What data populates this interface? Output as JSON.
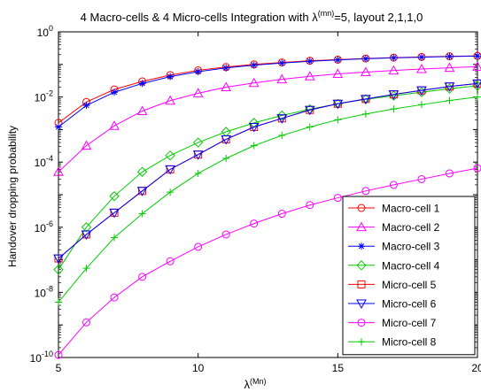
{
  "chart_data": {
    "type": "line",
    "title_prefix": "4 Macro-cells & 4 Micro-cells Integration with λ",
    "title_sup": "(mn)",
    "title_suffix": "=5, layout 2,1,1,0",
    "xlabel_base": "λ",
    "xlabel_sup": "(Mn)",
    "ylabel": "Handover dropping probability",
    "xlim": [
      5,
      20
    ],
    "ylim_exp": [
      -10,
      0
    ],
    "y_scale": "log",
    "x_ticks": [
      "5",
      "10",
      "15",
      "20"
    ],
    "y_tick_base": "10",
    "y_tick_exponents": [
      "-10",
      "-8",
      "-6",
      "-4",
      "-2",
      "0"
    ],
    "legend_position": "bottom-right",
    "x": [
      5,
      6,
      7,
      8,
      9,
      10,
      11,
      12,
      13,
      14,
      15,
      16,
      17,
      18,
      19,
      20
    ],
    "series": [
      {
        "name": "Macro-cell 1",
        "color": "#ff0000",
        "marker": "circle",
        "values": [
          0.0016,
          0.007,
          0.017,
          0.03,
          0.047,
          0.066,
          0.083,
          0.1,
          0.115,
          0.13,
          0.14,
          0.152,
          0.162,
          0.17,
          0.177,
          0.183
        ]
      },
      {
        "name": "Macro-cell 2",
        "color": "#ff00ff",
        "marker": "triangle-up",
        "values": [
          5e-05,
          0.00032,
          0.0013,
          0.0037,
          0.0077,
          0.013,
          0.02,
          0.027,
          0.035,
          0.043,
          0.051,
          0.058,
          0.065,
          0.072,
          0.079,
          0.085
        ]
      },
      {
        "name": "Macro-cell 3",
        "color": "#0000ff",
        "marker": "star",
        "values": [
          0.0012,
          0.0055,
          0.014,
          0.026,
          0.042,
          0.06,
          0.078,
          0.095,
          0.11,
          0.125,
          0.137,
          0.149,
          0.159,
          0.167,
          0.175,
          0.181
        ]
      },
      {
        "name": "Macro-cell 4",
        "color": "#00cc00",
        "marker": "diamond",
        "values": [
          5e-08,
          1e-06,
          9e-06,
          5e-05,
          0.00016,
          0.0004,
          0.00085,
          0.0016,
          0.0027,
          0.0042,
          0.0062,
          0.0085,
          0.011,
          0.014,
          0.018,
          0.022
        ]
      },
      {
        "name": "Micro-cell 5",
        "color": "#ff0000",
        "marker": "square",
        "values": [
          1.1e-07,
          6e-07,
          2.8e-06,
          1.3e-05,
          6e-05,
          0.00017,
          0.0005,
          0.0012,
          0.0022,
          0.004,
          0.0062,
          0.0087,
          0.012,
          0.016,
          0.021,
          0.026
        ]
      },
      {
        "name": "Micro-cell 6",
        "color": "#0000ff",
        "marker": "triangle-down",
        "values": [
          1.1e-07,
          6e-07,
          2.8e-06,
          1.3e-05,
          6e-05,
          0.00017,
          0.0005,
          0.0012,
          0.0022,
          0.004,
          0.0062,
          0.0087,
          0.012,
          0.016,
          0.021,
          0.026
        ]
      },
      {
        "name": "Micro-cell 7",
        "color": "#ff00ff",
        "marker": "circle",
        "values": [
          1.2e-10,
          1.2e-09,
          7e-09,
          3e-08,
          9e-08,
          2.5e-07,
          6e-07,
          1.3e-06,
          2.6e-06,
          4.8e-06,
          8e-06,
          1.3e-05,
          2e-05,
          3e-05,
          4.5e-05,
          6.5e-05
        ]
      },
      {
        "name": "Micro-cell 8",
        "color": "#00cc00",
        "marker": "plus",
        "values": [
          5e-09,
          5.5e-08,
          4.8e-07,
          2.6e-06,
          1.2e-05,
          4.5e-05,
          0.00013,
          0.00032,
          0.00066,
          0.0012,
          0.002,
          0.003,
          0.0043,
          0.0058,
          0.0078,
          0.01
        ]
      }
    ]
  }
}
